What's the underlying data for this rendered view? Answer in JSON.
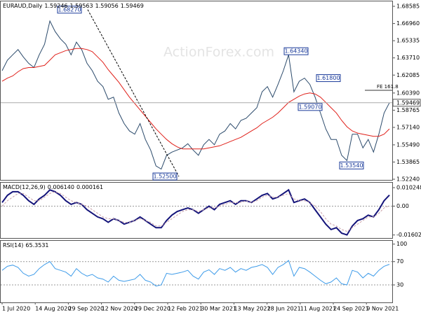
{
  "chart_data": [
    {
      "type": "line",
      "title": "EURAUD,Daily",
      "ohlc": [
        1.59246,
        1.59563,
        1.59056,
        1.59469
      ],
      "watermark": "ActionForex.com",
      "ylim": [
        1.5211,
        1.6905
      ],
      "yticks": [
        1.68585,
        {
          "value": 1.6696,
          "label": "1.66960"
        },
        1.65335,
        {
          "value": 1.6371,
          "label": "1.63710"
        },
        1.62085,
        {
          "value": 1.6039,
          "label": "1.60390"
        },
        1.58765,
        {
          "value": 1.5714,
          "label": "1.57140"
        },
        {
          "value": 1.5549,
          "label": "1.55490"
        },
        1.53865,
        {
          "value": 1.5224,
          "label": "1.52240"
        }
      ],
      "annotations": [
        {
          "value": 1.6827,
          "label": "1.68270"
        },
        {
          "value": 1.525,
          "label": "1.52500"
        },
        {
          "value": 1.6434,
          "label": "1.64340"
        },
        {
          "value": 1.618,
          "label": "1.61800"
        },
        {
          "value": 1.5907,
          "label": "1.59070"
        },
        {
          "value": 1.5354,
          "label": "1.53540"
        }
      ],
      "fe_level": {
        "value": 1.6065,
        "label": "FE 161.8"
      },
      "series": [
        {
          "color": "#2b4a6b",
          "values": [
            1.625,
            1.635,
            1.64,
            1.645,
            1.638,
            1.632,
            1.628,
            1.64,
            1.65,
            1.672,
            1.662,
            1.655,
            1.65,
            1.64,
            1.652,
            1.645,
            1.632,
            1.625,
            1.615,
            1.61,
            1.598,
            1.6,
            1.585,
            1.575,
            1.568,
            1.565,
            1.575,
            1.56,
            1.55,
            1.535,
            1.532,
            1.545,
            1.548,
            1.55,
            1.552,
            1.556,
            1.55,
            1.545,
            1.555,
            1.56,
            1.555,
            1.565,
            1.568,
            1.575,
            1.57,
            1.578,
            1.58,
            1.585,
            1.59,
            1.605,
            1.61,
            1.6,
            1.612,
            1.625,
            1.64,
            1.605,
            1.615,
            1.618,
            1.612,
            1.6,
            1.585,
            1.57,
            1.56,
            1.56,
            1.545,
            1.54,
            1.565,
            1.565,
            1.552,
            1.56,
            1.548,
            1.565,
            1.585,
            1.59469
          ]
        },
        {
          "color": "#e0201a",
          "values": [
            1.615,
            1.618,
            1.62,
            1.624,
            1.627,
            1.628,
            1.628,
            1.629,
            1.63,
            1.635,
            1.64,
            1.642,
            1.644,
            1.645,
            1.646,
            1.646,
            1.645,
            1.643,
            1.638,
            1.633,
            1.626,
            1.62,
            1.614,
            1.607,
            1.6,
            1.594,
            1.588,
            1.582,
            1.576,
            1.57,
            1.565,
            1.56,
            1.556,
            1.553,
            1.551,
            1.551,
            1.551,
            1.551,
            1.551,
            1.552,
            1.553,
            1.554,
            1.556,
            1.558,
            1.56,
            1.562,
            1.565,
            1.568,
            1.571,
            1.575,
            1.578,
            1.581,
            1.585,
            1.59,
            1.595,
            1.598,
            1.601,
            1.603,
            1.604,
            1.603,
            1.6,
            1.595,
            1.59,
            1.585,
            1.578,
            1.572,
            1.568,
            1.566,
            1.565,
            1.564,
            1.563,
            1.563,
            1.565,
            1.57
          ]
        }
      ]
    },
    {
      "type": "line",
      "title": "MACD(12,26,9)",
      "readings": [
        {
          "value": 0.00614,
          "label": "0.006140"
        },
        0.000161
      ],
      "ylim": [
        -0.0177,
        0.013
      ],
      "yticks": [
        0.010248,
        {
          "value": 0,
          "label": "0.00"
        },
        -0.016023
      ],
      "series": [
        {
          "color": "#14147a",
          "values": [
            0.002,
            0.006,
            0.008,
            0.008,
            0.006,
            0.003,
            0.001,
            0.004,
            0.006,
            0.009,
            0.008,
            0.006,
            0.003,
            0.001,
            0.002,
            0.001,
            -0.002,
            -0.004,
            -0.006,
            -0.007,
            -0.009,
            -0.007,
            -0.008,
            -0.01,
            -0.009,
            -0.008,
            -0.006,
            -0.008,
            -0.01,
            -0.012,
            -0.012,
            -0.008,
            -0.005,
            -0.003,
            -0.002,
            -0.001,
            -0.002,
            -0.004,
            -0.002,
            0,
            -0.002,
            0.001,
            0.002,
            0.003,
            0.001,
            0.003,
            0.003,
            0.002,
            0.004,
            0.006,
            0.007,
            0.004,
            0.005,
            0.007,
            0.009,
            0.002,
            0.003,
            0.004,
            0.002,
            -0.002,
            -0.006,
            -0.01,
            -0.013,
            -0.012,
            -0.015,
            -0.016,
            -0.011,
            -0.008,
            -0.007,
            -0.005,
            -0.006,
            -0.002,
            0.003,
            0.00614
          ]
        },
        {
          "color": "#c9a0a8",
          "values": [
            0,
            0.003,
            0.005,
            0.007,
            0.007,
            0.005,
            0.003,
            0.003,
            0.005,
            0.007,
            0.008,
            0.007,
            0.005,
            0.003,
            0.002,
            0.001,
            0,
            -0.002,
            -0.004,
            -0.006,
            -0.007,
            -0.007,
            -0.008,
            -0.009,
            -0.009,
            -0.008,
            -0.007,
            -0.008,
            -0.009,
            -0.011,
            -0.011,
            -0.009,
            -0.007,
            -0.005,
            -0.003,
            -0.002,
            -0.002,
            -0.003,
            -0.002,
            -0.001,
            -0.001,
            0,
            0.001,
            0.002,
            0.002,
            0.002,
            0.003,
            0.002,
            0.003,
            0.005,
            0.006,
            0.005,
            0.005,
            0.006,
            0.007,
            0.004,
            0.003,
            0.003,
            0.002,
            0,
            -0.003,
            -0.007,
            -0.01,
            -0.011,
            -0.013,
            -0.014,
            -0.012,
            -0.01,
            -0.008,
            -0.006,
            -0.006,
            -0.004,
            -0.001,
            0.000161
          ]
        }
      ]
    },
    {
      "type": "line",
      "title": "RSI(14)",
      "readings": [
        65.3531
      ],
      "ylim": [
        0,
        105.7
      ],
      "yticks": [
        100,
        70,
        30
      ],
      "x_labels": [
        "1 Jul 2020",
        "14 Aug 2020",
        "29 Sep 2020",
        "12 Nov 2020",
        "29 Dec 2020",
        "12 Feb 2021",
        "30 Mar 2021",
        "13 May 2021",
        "28 Jun 2021",
        "11 Aug 2021",
        "24 Sep 2021",
        "9 Nov 2021"
      ],
      "series": [
        {
          "color": "#3d9be9",
          "values": [
            55,
            62,
            64,
            60,
            50,
            45,
            48,
            58,
            65,
            70,
            58,
            55,
            52,
            45,
            58,
            50,
            45,
            48,
            42,
            40,
            35,
            45,
            38,
            36,
            38,
            40,
            48,
            38,
            35,
            28,
            30,
            50,
            48,
            50,
            52,
            55,
            45,
            40,
            52,
            56,
            48,
            58,
            55,
            60,
            52,
            58,
            55,
            60,
            62,
            65,
            60,
            48,
            60,
            65,
            72,
            45,
            60,
            58,
            52,
            45,
            38,
            32,
            35,
            42,
            32,
            30,
            55,
            52,
            42,
            50,
            45,
            55,
            62,
            65.3531
          ]
        }
      ]
    }
  ]
}
